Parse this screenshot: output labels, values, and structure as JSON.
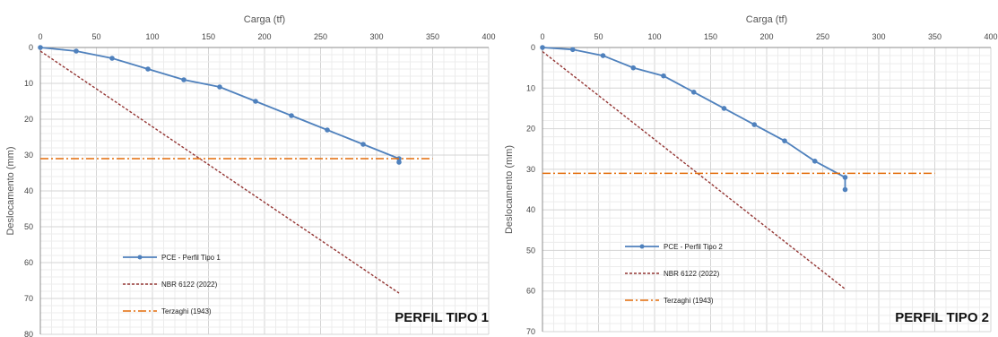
{
  "chart_data": [
    {
      "type": "line",
      "title": "",
      "panel_label": "PERFIL TIPO 1",
      "xlabel": "Carga (tf)",
      "ylabel": "Deslocamento (mm)",
      "xlim": [
        0,
        400
      ],
      "ylim": [
        0,
        80
      ],
      "y_inverted": true,
      "x_axis_position": "top",
      "x_ticks": [
        0,
        50,
        100,
        150,
        200,
        250,
        300,
        350,
        400
      ],
      "y_ticks": [
        0,
        10,
        20,
        30,
        40,
        50,
        60,
        70,
        80
      ],
      "grid": true,
      "legend_position": "bottom-left",
      "series": [
        {
          "name": "PCE - Perfil Tipo 1",
          "style": "solid-markers",
          "color": "#4f81bd",
          "x": [
            0,
            32,
            64,
            96,
            128,
            160,
            192,
            224,
            256,
            288,
            320,
            320
          ],
          "y": [
            0,
            1,
            3,
            6,
            9,
            11,
            15,
            19,
            23,
            27,
            31,
            32
          ]
        },
        {
          "name": "NBR 6122 (2022)",
          "style": "dotted",
          "color": "#943634",
          "x": [
            0,
            320
          ],
          "y": [
            1,
            68.5
          ]
        },
        {
          "name": "Terzaghi (1943)",
          "style": "dash-dot",
          "color": "#e36c09",
          "x": [
            0,
            350
          ],
          "y": [
            31,
            31
          ]
        }
      ]
    },
    {
      "type": "line",
      "title": "",
      "panel_label": "PERFIL TIPO 2",
      "xlabel": "Carga (tf)",
      "ylabel": "Deslocamento (mm)",
      "xlim": [
        0,
        400
      ],
      "ylim": [
        0,
        70
      ],
      "y_inverted": true,
      "x_axis_position": "top",
      "x_ticks": [
        0,
        50,
        100,
        150,
        200,
        250,
        300,
        350,
        400
      ],
      "y_ticks": [
        0,
        10,
        20,
        30,
        40,
        50,
        60,
        70
      ],
      "grid": true,
      "legend_position": "bottom-left",
      "series": [
        {
          "name": "PCE - Perfil Tipo 2",
          "style": "solid-markers",
          "color": "#4f81bd",
          "x": [
            0,
            27,
            54,
            81,
            108,
            135,
            162,
            189,
            216,
            243,
            270,
            270
          ],
          "y": [
            0,
            0.5,
            2,
            5,
            7,
            11,
            15,
            19,
            23,
            28,
            32,
            35
          ]
        },
        {
          "name": "NBR 6122 (2022)",
          "style": "dotted",
          "color": "#943634",
          "x": [
            0,
            270
          ],
          "y": [
            1,
            59.5
          ]
        },
        {
          "name": "Terzaghi (1943)",
          "style": "dash-dot",
          "color": "#e36c09",
          "x": [
            0,
            350
          ],
          "y": [
            31,
            31
          ]
        }
      ]
    }
  ]
}
